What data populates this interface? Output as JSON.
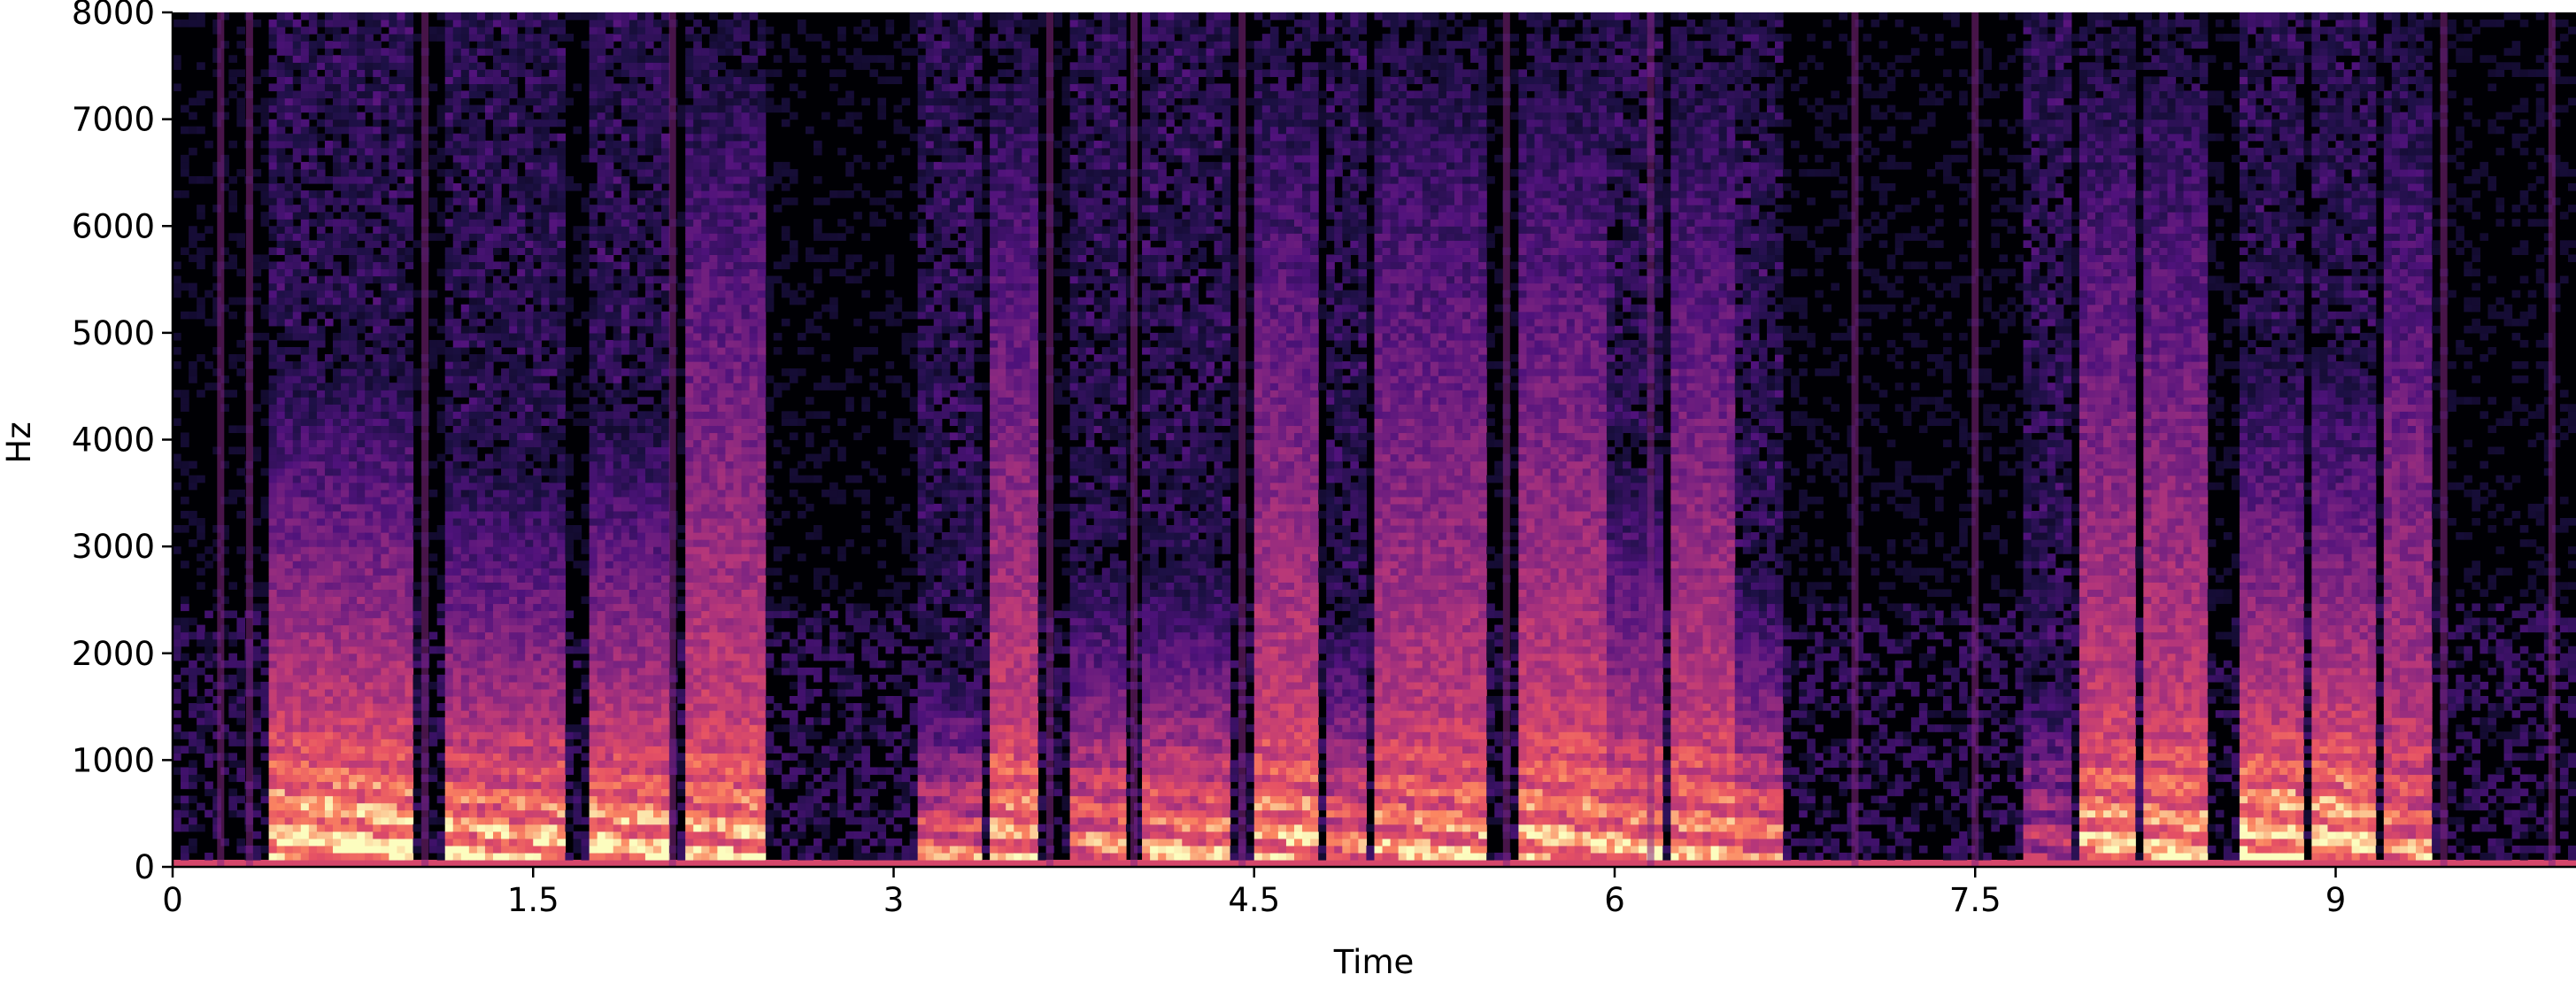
{
  "chart_data": {
    "type": "heatmap",
    "subtype": "spectrogram",
    "colormap": "magma",
    "title": "",
    "xlabel": "Time",
    "ylabel": "Hz",
    "xlim": [
      0,
      10
    ],
    "ylim": [
      0,
      8000
    ],
    "x_ticks": [
      {
        "value": 0,
        "label": "0"
      },
      {
        "value": 1.5,
        "label": "1.5"
      },
      {
        "value": 3,
        "label": "3"
      },
      {
        "value": 4.5,
        "label": "4.5"
      },
      {
        "value": 6,
        "label": "6"
      },
      {
        "value": 7.5,
        "label": "7.5"
      },
      {
        "value": 9,
        "label": "9"
      }
    ],
    "y_ticks": [
      {
        "value": 0,
        "label": "0"
      },
      {
        "value": 1000,
        "label": "1000"
      },
      {
        "value": 2000,
        "label": "2000"
      },
      {
        "value": 3000,
        "label": "3000"
      },
      {
        "value": 4000,
        "label": "4000"
      },
      {
        "value": 5000,
        "label": "5000"
      },
      {
        "value": 6000,
        "label": "6000"
      },
      {
        "value": 7000,
        "label": "7000"
      },
      {
        "value": 8000,
        "label": "8000"
      }
    ],
    "grid": false,
    "legend": "none",
    "voiced_segments": [
      {
        "start": 0.4,
        "end": 1.0,
        "intensity": 0.95,
        "top_hz": 5000
      },
      {
        "start": 1.12,
        "end": 1.62,
        "intensity": 0.9,
        "top_hz": 4000
      },
      {
        "start": 1.75,
        "end": 2.05,
        "intensity": 0.9,
        "top_hz": 4500
      },
      {
        "start": 2.12,
        "end": 2.45,
        "intensity": 0.85,
        "top_hz": 8000
      },
      {
        "start": 3.1,
        "end": 3.35,
        "intensity": 0.75,
        "top_hz": 2000
      },
      {
        "start": 3.4,
        "end": 3.6,
        "intensity": 0.85,
        "top_hz": 8000
      },
      {
        "start": 3.72,
        "end": 3.95,
        "intensity": 0.8,
        "top_hz": 3000
      },
      {
        "start": 4.05,
        "end": 4.4,
        "intensity": 0.85,
        "top_hz": 3000
      },
      {
        "start": 4.5,
        "end": 4.75,
        "intensity": 0.85,
        "top_hz": 8000
      },
      {
        "start": 4.8,
        "end": 4.95,
        "intensity": 0.8,
        "top_hz": 2500
      },
      {
        "start": 5.0,
        "end": 5.45,
        "intensity": 0.8,
        "top_hz": 8000
      },
      {
        "start": 5.6,
        "end": 5.95,
        "intensity": 0.85,
        "top_hz": 8000
      },
      {
        "start": 5.95,
        "end": 6.2,
        "intensity": 0.85,
        "top_hz": 4000
      },
      {
        "start": 6.25,
        "end": 6.5,
        "intensity": 0.8,
        "top_hz": 8000
      },
      {
        "start": 6.5,
        "end": 6.7,
        "intensity": 0.8,
        "top_hz": 3000
      },
      {
        "start": 7.7,
        "end": 7.9,
        "intensity": 0.5,
        "top_hz": 2000
      },
      {
        "start": 7.95,
        "end": 8.15,
        "intensity": 0.85,
        "top_hz": 8000
      },
      {
        "start": 8.2,
        "end": 8.45,
        "intensity": 0.85,
        "top_hz": 8000
      },
      {
        "start": 8.6,
        "end": 8.88,
        "intensity": 0.95,
        "top_hz": 5000
      },
      {
        "start": 8.9,
        "end": 9.15,
        "intensity": 0.95,
        "top_hz": 5000
      },
      {
        "start": 9.2,
        "end": 9.4,
        "intensity": 0.75,
        "top_hz": 8000
      }
    ],
    "bursts": [
      0.2,
      0.32,
      1.05,
      2.08,
      3.65,
      4.0,
      4.45,
      5.55,
      6.15,
      7.0,
      7.5,
      9.45,
      9.9
    ]
  }
}
